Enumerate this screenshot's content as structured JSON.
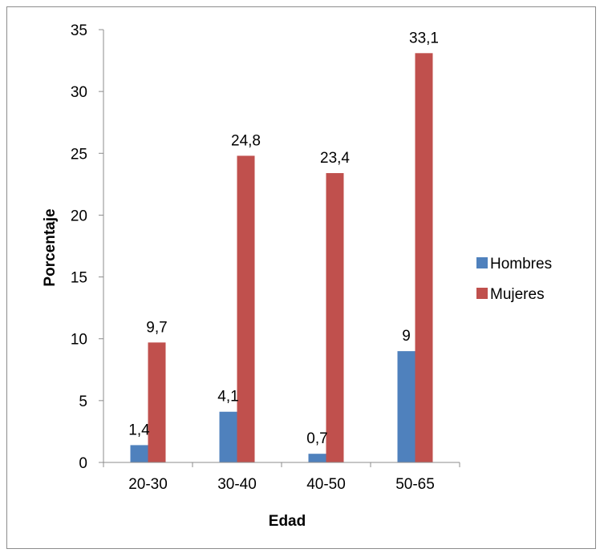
{
  "chart_data": {
    "type": "bar",
    "categories": [
      "20-30",
      "30-40",
      "40-50",
      "50-65"
    ],
    "series": [
      {
        "name": "Hombres",
        "values": [
          1.4,
          4.1,
          0.7,
          9
        ],
        "labels": [
          "1,4",
          "4,1",
          "0,7",
          "9"
        ],
        "color": "#4F81BD"
      },
      {
        "name": "Mujeres",
        "values": [
          9.7,
          24.8,
          23.4,
          33.1
        ],
        "labels": [
          "9,7",
          "24,8",
          "23,4",
          "33,1"
        ],
        "color": "#C0504D"
      }
    ],
    "xlabel": "Edad",
    "ylabel": "Porcentaje",
    "ylim": [
      0,
      35
    ],
    "yticks": [
      0,
      5,
      10,
      15,
      20,
      25,
      30,
      35
    ],
    "grid": false,
    "legend": "right"
  }
}
